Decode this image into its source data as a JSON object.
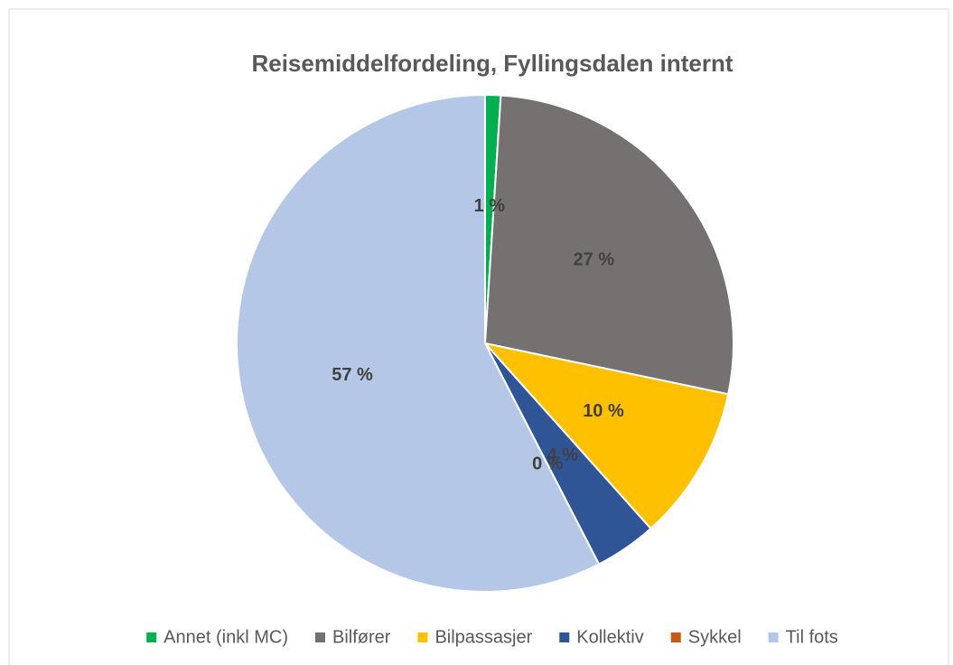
{
  "chart_data": {
    "type": "pie",
    "title": "Reisemiddelfordeling, Fyllingsdalen internt",
    "categories": [
      "Annet (inkl MC)",
      "Bilfører",
      "Bilpassasjer",
      "Kollektiv",
      "Sykkel",
      "Til fots"
    ],
    "values": [
      1,
      27,
      10,
      4,
      0,
      57
    ],
    "value_labels": [
      "1 %",
      "27 %",
      "10 %",
      "4 %",
      "0 %",
      "57 %"
    ],
    "colors": [
      "#00b050",
      "#767171",
      "#ffc000",
      "#2f5597",
      "#c55a11",
      "#b4c7e7"
    ],
    "legend": "bottom"
  }
}
